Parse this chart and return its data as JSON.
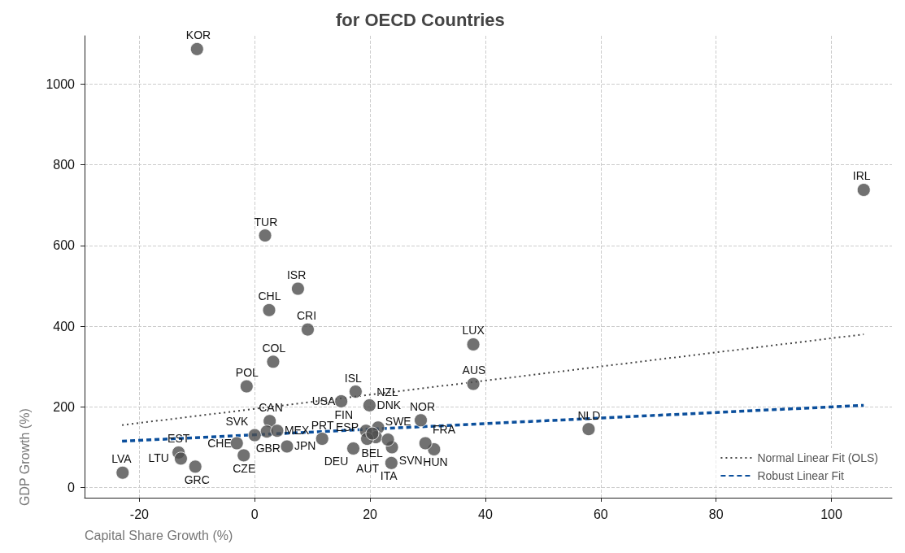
{
  "chart_data": {
    "type": "scatter",
    "title": "for OECD Countries",
    "xlabel": "Capital Share Growth (%)",
    "ylabel": "GDP Growth (%)",
    "xlim": [
      -29.5,
      110.5
    ],
    "xticks": [
      -20,
      0,
      20,
      40,
      60,
      80,
      100
    ],
    "ylim": [
      -25,
      1120
    ],
    "yticks": [
      0,
      200,
      400,
      600,
      800,
      {
        "value": 1000,
        "label": "1000"
      }
    ],
    "grid": true,
    "legend": "bottom right",
    "marker": "circle",
    "series": [
      {
        "color": "#4d4d4d",
        "x": [
          -10.0,
          105.6,
          1.8,
          7.5,
          2.5,
          9.2,
          3.2,
          37.9,
          37.9,
          -1.4,
          17.5,
          15.0,
          19.9,
          28.8,
          57.9,
          2.6,
          2.1,
          3.9,
          -3.1,
          0,
          -1.9,
          5.6,
          -13.2,
          -12.8,
          -10.3,
          -22.9,
          11.7,
          17.1,
          23.7,
          31.1,
          29.6,
          23.8,
          21.4,
          21.0,
          23.1,
          19.3,
          19.5,
          20.4
        ],
        "values": [
          1087,
          738,
          625,
          493,
          440,
          392,
          312,
          355,
          257,
          251,
          238,
          214,
          204,
          167,
          145,
          165,
          139,
          141,
          110,
          130,
          80,
          102,
          87,
          72,
          52,
          37,
          121,
          97,
          61,
          95,
          110,
          100,
          149,
          125,
          119,
          141,
          121,
          134
        ]
      },
      {
        "type": "line",
        "name": "Normal Linear Fit (OLS)",
        "color": "#444444",
        "line_style": "dotted",
        "marker": "none",
        "x": [
          -23,
          105.6
        ],
        "values": [
          155,
          380
        ]
      },
      {
        "type": "line",
        "name": "Robust Linear Fit",
        "color": "#0b4f9c",
        "line_style": "dashed",
        "marker": "none",
        "x": [
          -23,
          105.6
        ],
        "values": [
          115,
          204
        ]
      }
    ],
    "annotations": [
      {
        "text": "KOR",
        "x": -10.0,
        "y": 1087
      },
      {
        "text": "IRL",
        "x": 105.6,
        "y": 738
      },
      {
        "text": "TUR",
        "x": 1.8,
        "y": 625
      },
      {
        "text": "ISR",
        "x": 7.5,
        "y": 493
      },
      {
        "text": "CHL",
        "x": 2.5,
        "y": 440
      },
      {
        "text": "CRI",
        "x": 9.2,
        "y": 392
      },
      {
        "text": "COL",
        "x": 3.2,
        "y": 312
      },
      {
        "text": "LUX",
        "x": 37.9,
        "y": 355
      },
      {
        "text": "AUS",
        "x": 37.9,
        "y": 257
      },
      {
        "text": "POL",
        "x": -1.4,
        "y": 251
      },
      {
        "text": "ISL",
        "x": 17.5,
        "y": 238
      },
      {
        "text": "USA",
        "x": 15.0,
        "y": 214
      },
      {
        "text": "NZL",
        "x": 19.9,
        "y": 204
      },
      {
        "text": "NOR",
        "x": 28.8,
        "y": 167
      },
      {
        "text": "NLD",
        "x": 57.9,
        "y": 145
      },
      {
        "text": "CAN",
        "x": 2.6,
        "y": 165
      },
      {
        "text": "GBR",
        "x": 2.1,
        "y": 139
      },
      {
        "text": "MEX",
        "x": 3.9,
        "y": 141
      },
      {
        "text": "CHE",
        "x": -3.1,
        "y": 110
      },
      {
        "text": "SVK",
        "x": 0,
        "y": 130
      },
      {
        "text": "CZE",
        "x": -1.9,
        "y": 80
      },
      {
        "text": "JPN",
        "x": 5.6,
        "y": 102
      },
      {
        "text": "EST",
        "x": -13.2,
        "y": 87
      },
      {
        "text": "LTU",
        "x": -12.8,
        "y": 72
      },
      {
        "text": "GRC",
        "x": -10.3,
        "y": 52
      },
      {
        "text": "LVA",
        "x": -22.9,
        "y": 37
      },
      {
        "text": "PRT",
        "x": 11.7,
        "y": 121
      },
      {
        "text": "DEU",
        "x": 17.1,
        "y": 97
      },
      {
        "text": "ITA",
        "x": 23.7,
        "y": 61
      },
      {
        "text": "HUN",
        "x": 31.1,
        "y": 95
      },
      {
        "text": "FRA",
        "x": 29.6,
        "y": 110
      },
      {
        "text": "SVN",
        "x": 23.8,
        "y": 100
      },
      {
        "text": "ESP",
        "x": 21.4,
        "y": 149
      },
      {
        "text": "SWE",
        "x": 21.0,
        "y": 125
      },
      {
        "text": "DNK",
        "x": 23.1,
        "y": 119
      },
      {
        "text": "FIN",
        "x": 19.3,
        "y": 141
      },
      {
        "text": "AUT",
        "x": 19.5,
        "y": 121
      },
      {
        "text": "BEL",
        "x": 20.4,
        "y": 134
      }
    ]
  }
}
